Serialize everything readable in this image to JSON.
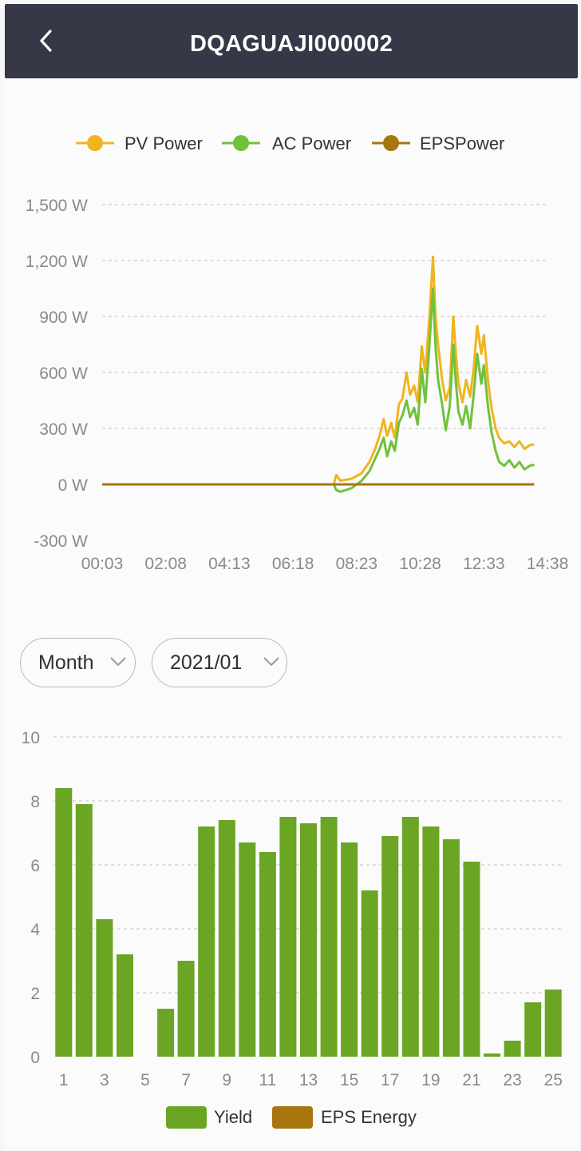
{
  "header": {
    "title": "DQAGUAJI000002",
    "background": "#363847"
  },
  "power_chart": {
    "legend": [
      {
        "name": "PV Power",
        "color": "#f0b41e"
      },
      {
        "name": "AC Power",
        "color": "#71c13c"
      },
      {
        "name": "EPSPower",
        "color": "#a8760f"
      }
    ],
    "y_ticks": [
      "1,500 W",
      "1,200 W",
      "900 W",
      "600 W",
      "300 W",
      "0 W",
      "-300 W"
    ],
    "x_ticks": [
      "00:03",
      "02:08",
      "04:13",
      "06:18",
      "08:23",
      "10:28",
      "12:33",
      "14:38"
    ]
  },
  "controls": {
    "period": {
      "label": "Month",
      "icon": "chevron-down-icon"
    },
    "date": {
      "label": "2021/01",
      "icon": "chevron-down-icon"
    }
  },
  "energy_chart": {
    "y_ticks": [
      "10",
      "8",
      "6",
      "4",
      "2",
      "0"
    ],
    "x_ticks": [
      "1",
      "3",
      "5",
      "7",
      "9",
      "11",
      "13",
      "15",
      "17",
      "19",
      "21",
      "23",
      "25"
    ],
    "legend": [
      {
        "name": "Yield",
        "color": "#6aa524"
      },
      {
        "name": "EPS Energy",
        "color": "#a8760f"
      }
    ]
  },
  "chart_data": [
    {
      "type": "line",
      "x_range": [
        "00:03",
        "14:38"
      ],
      "ylim": [
        -300,
        1500
      ],
      "y_unit": "W",
      "grid": true,
      "legend_position": "top",
      "series": [
        {
          "name": "PV Power",
          "color": "#f0b41e",
          "points": [
            [
              0,
              0
            ],
            [
              455,
              0
            ],
            [
              460,
              50
            ],
            [
              468,
              20
            ],
            [
              490,
              30
            ],
            [
              510,
              60
            ],
            [
              525,
              120
            ],
            [
              535,
              180
            ],
            [
              545,
              260
            ],
            [
              553,
              350
            ],
            [
              560,
              260
            ],
            [
              568,
              330
            ],
            [
              575,
              250
            ],
            [
              583,
              430
            ],
            [
              590,
              460
            ],
            [
              598,
              600
            ],
            [
              605,
              480
            ],
            [
              613,
              530
            ],
            [
              620,
              440
            ],
            [
              628,
              740
            ],
            [
              635,
              600
            ],
            [
              643,
              900
            ],
            [
              650,
              1220
            ],
            [
              655,
              900
            ],
            [
              660,
              750
            ],
            [
              668,
              560
            ],
            [
              675,
              450
            ],
            [
              683,
              520
            ],
            [
              690,
              900
            ],
            [
              695,
              700
            ],
            [
              700,
              540
            ],
            [
              708,
              440
            ],
            [
              715,
              560
            ],
            [
              723,
              470
            ],
            [
              730,
              620
            ],
            [
              737,
              850
            ],
            [
              745,
              700
            ],
            [
              750,
              800
            ],
            [
              758,
              560
            ],
            [
              765,
              410
            ],
            [
              773,
              300
            ],
            [
              780,
              250
            ],
            [
              790,
              220
            ],
            [
              800,
              230
            ],
            [
              810,
              200
            ],
            [
              820,
              230
            ],
            [
              830,
              190
            ],
            [
              840,
              210
            ],
            [
              849,
              215
            ]
          ]
        },
        {
          "name": "AC Power",
          "color": "#71c13c",
          "points": [
            [
              0,
              0
            ],
            [
              455,
              0
            ],
            [
              460,
              -30
            ],
            [
              468,
              -40
            ],
            [
              490,
              -20
            ],
            [
              510,
              20
            ],
            [
              525,
              70
            ],
            [
              535,
              130
            ],
            [
              545,
              190
            ],
            [
              553,
              250
            ],
            [
              560,
              150
            ],
            [
              568,
              230
            ],
            [
              575,
              180
            ],
            [
              583,
              330
            ],
            [
              590,
              370
            ],
            [
              598,
              450
            ],
            [
              605,
              360
            ],
            [
              613,
              410
            ],
            [
              620,
              320
            ],
            [
              628,
              620
            ],
            [
              635,
              440
            ],
            [
              643,
              750
            ],
            [
              650,
              1050
            ],
            [
              655,
              740
            ],
            [
              660,
              560
            ],
            [
              668,
              430
            ],
            [
              675,
              290
            ],
            [
              683,
              420
            ],
            [
              690,
              750
            ],
            [
              695,
              550
            ],
            [
              700,
              390
            ],
            [
              708,
              320
            ],
            [
              715,
              420
            ],
            [
              723,
              300
            ],
            [
              730,
              480
            ],
            [
              737,
              700
            ],
            [
              745,
              540
            ],
            [
              750,
              640
            ],
            [
              758,
              420
            ],
            [
              765,
              280
            ],
            [
              773,
              180
            ],
            [
              780,
              120
            ],
            [
              790,
              100
            ],
            [
              800,
              130
            ],
            [
              810,
              90
            ],
            [
              820,
              120
            ],
            [
              830,
              80
            ],
            [
              840,
              100
            ],
            [
              849,
              105
            ]
          ]
        },
        {
          "name": "EPSPower",
          "color": "#a8760f",
          "points": [
            [
              0,
              0
            ],
            [
              849,
              0
            ]
          ]
        }
      ]
    },
    {
      "type": "bar",
      "categories": [
        "1",
        "2",
        "3",
        "4",
        "5",
        "6",
        "7",
        "8",
        "9",
        "10",
        "11",
        "12",
        "13",
        "14",
        "15",
        "16",
        "17",
        "18",
        "19",
        "20",
        "21",
        "22",
        "23",
        "24",
        "25"
      ],
      "ylim": [
        0,
        10
      ],
      "grid": true,
      "legend_position": "bottom",
      "series": [
        {
          "name": "Yield",
          "color": "#6aa524",
          "values": [
            8.4,
            7.9,
            4.3,
            3.2,
            0,
            1.5,
            3.0,
            7.2,
            7.4,
            6.7,
            6.4,
            7.5,
            7.3,
            7.5,
            6.7,
            5.2,
            6.9,
            7.5,
            7.2,
            6.8,
            6.1,
            0.1,
            0.5,
            1.7,
            2.1
          ]
        },
        {
          "name": "EPS Energy",
          "color": "#a8760f",
          "values": [
            0,
            0,
            0,
            0,
            0,
            0,
            0,
            0,
            0,
            0,
            0,
            0,
            0,
            0,
            0,
            0,
            0,
            0,
            0,
            0,
            0,
            0,
            0,
            0,
            0
          ]
        }
      ]
    }
  ]
}
